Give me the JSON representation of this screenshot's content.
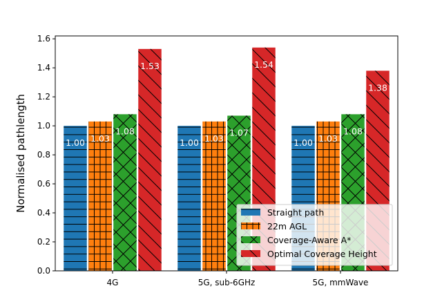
{
  "chart_data": {
    "type": "bar",
    "title": "",
    "xlabel": "",
    "ylabel": "Normalised pathlength",
    "ylim": [
      0,
      1.62
    ],
    "yticks": [
      "0.0",
      "0.2",
      "0.4",
      "0.6",
      "0.8",
      "1.0",
      "1.2",
      "1.4",
      "1.6"
    ],
    "categories": [
      "4G",
      "5G, sub-6GHz",
      "5G, mmWave"
    ],
    "series": [
      {
        "name": "Straight path",
        "color": "#1f77b4",
        "hatch": "horizontal",
        "values": [
          1.0,
          1.0,
          1.0
        ],
        "labels": [
          "1.00",
          "1.00",
          "1.00"
        ]
      },
      {
        "name": "22m AGL",
        "color": "#ff7f0e",
        "hatch": "grid",
        "values": [
          1.03,
          1.03,
          1.03
        ],
        "labels": [
          "1.03",
          "1.03",
          "1.03"
        ]
      },
      {
        "name": "Coverage-Aware A*",
        "color": "#2ca02c",
        "hatch": "crosshatch",
        "values": [
          1.08,
          1.07,
          1.08
        ],
        "labels": [
          "1.08",
          "1.07",
          "1.08"
        ]
      },
      {
        "name": "Optimal Coverage Height",
        "color": "#d62728",
        "hatch": "backslash",
        "values": [
          1.53,
          1.54,
          1.38
        ],
        "labels": [
          "1.53",
          "1.54",
          "1.38"
        ]
      }
    ],
    "legend": {
      "position": "lower-right"
    },
    "grid": false
  }
}
